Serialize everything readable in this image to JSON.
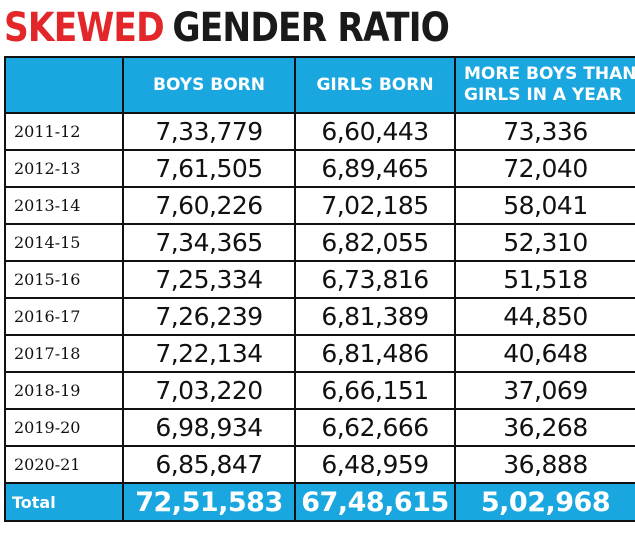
{
  "headline": {
    "red": "SKEWED",
    "black": "GENDER RATIO"
  },
  "chart_data": {
    "type": "table",
    "columns": [
      "",
      "BOYS BORN",
      "GIRLS BORN",
      "MORE BOYS THAN GIRLS IN A YEAR"
    ],
    "header_lines": {
      "boys": "BOYS BORN",
      "girls": "GIRLS BORN",
      "diff_line1": "MORE BOYS THAN",
      "diff_line2": "GIRLS IN A YEAR"
    },
    "rows": [
      {
        "year": "2011-12",
        "boys": "7,33,779",
        "girls": "6,60,443",
        "diff": "73,336"
      },
      {
        "year": "2012-13",
        "boys": "7,61,505",
        "girls": "6,89,465",
        "diff": "72,040"
      },
      {
        "year": "2013-14",
        "boys": "7,60,226",
        "girls": "7,02,185",
        "diff": "58,041"
      },
      {
        "year": "2014-15",
        "boys": "7,34,365",
        "girls": "6,82,055",
        "diff": "52,310"
      },
      {
        "year": "2015-16",
        "boys": "7,25,334",
        "girls": "6,73,816",
        "diff": "51,518"
      },
      {
        "year": "2016-17",
        "boys": "7,26,239",
        "girls": "6,81,389",
        "diff": "44,850"
      },
      {
        "year": "2017-18",
        "boys": "7,22,134",
        "girls": "6,81,486",
        "diff": "40,648"
      },
      {
        "year": "2018-19",
        "boys": "7,03,220",
        "girls": "6,66,151",
        "diff": "37,069"
      },
      {
        "year": "2019-20",
        "boys": "6,98,934",
        "girls": "6,62,666",
        "diff": "36,268"
      },
      {
        "year": "2020-21",
        "boys": "6,85,847",
        "girls": "6,48,959",
        "diff": "36,888"
      }
    ],
    "total": {
      "label": "Total",
      "boys": "72,51,583",
      "girls": "67,48,615",
      "diff": "5,02,968"
    },
    "colors": {
      "header_bg": "#1aa7e0",
      "headline_red": "#e3262a",
      "border": "#111111"
    }
  }
}
